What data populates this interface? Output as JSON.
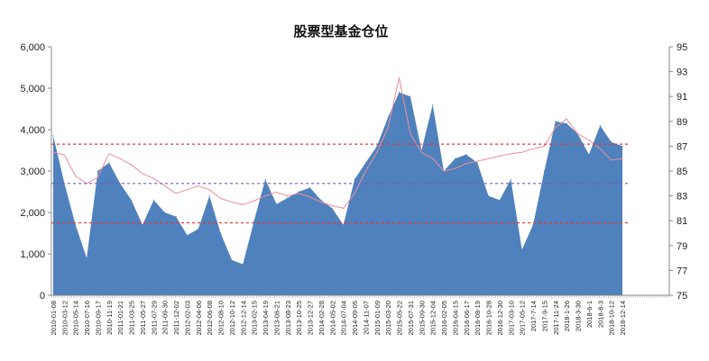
{
  "chart_data": {
    "type": "area",
    "title": "股票型基金仓位",
    "xlabel": "",
    "ylabel": "",
    "y2label": "",
    "ylim": [
      0,
      6000
    ],
    "y2lim": [
      75,
      95
    ],
    "yticks": [
      "0",
      "1,000",
      "2,000",
      "3,000",
      "4,000",
      "5,000",
      "6,000"
    ],
    "y2ticks": [
      "75",
      "77",
      "79",
      "81",
      "83",
      "85",
      "87",
      "89",
      "91",
      "93",
      "95"
    ],
    "grid": false,
    "legend": "none",
    "x": [
      "2010-01-08",
      "2010-03-12",
      "2010-05-14",
      "2010-07-16",
      "2010-09-17",
      "2010-11-19",
      "2011-01-21",
      "2011-03-25",
      "2011-05-27",
      "2011-07-29",
      "2011-09-30",
      "2011-12-02",
      "2012-02-03",
      "2012-04-06",
      "2012-06-08",
      "2012-08-10",
      "2012-10-12",
      "2012-12-14",
      "2013-02-15",
      "2013-04-19",
      "2013-06-21",
      "2013-08-23",
      "2013-10-25",
      "2013-12-27",
      "2014-02-28",
      "2014-05-02",
      "2014-07-04",
      "2014-09-05",
      "2014-11-07",
      "2015-01-09",
      "2015-03-20",
      "2015-05-22",
      "2015-07-31",
      "2015-09-30",
      "2015-12-04",
      "2016-02-05",
      "2016-04-15",
      "2016-06-17",
      "2016-08-19",
      "2016-10-28",
      "2016-12-30",
      "2017-03-10",
      "2017-05-12",
      "2017-7-14",
      "2017-9-15",
      "2017-11-24",
      "2018-1-26",
      "2018-3-30",
      "2018-6-1",
      "2018-8-3",
      "2018-10-12",
      "2018-12-14"
    ],
    "series": [
      {
        "type": "area",
        "axis": "left",
        "color": "#4f81bd",
        "values": [
          3850,
          2700,
          1700,
          900,
          3000,
          3200,
          2700,
          2300,
          1700,
          2300,
          2000,
          1900,
          1450,
          1600,
          2400,
          1500,
          850,
          750,
          1800,
          2800,
          2200,
          2350,
          2500,
          2600,
          2300,
          2100,
          1700,
          2800,
          3200,
          3600,
          4300,
          4900,
          4800,
          3500,
          4600,
          3000,
          3300,
          3400,
          3200,
          2400,
          2300,
          2800,
          1100,
          1700,
          3000,
          4200,
          4150,
          3900,
          3400,
          4100,
          3700,
          3600
        ]
      },
      {
        "type": "line",
        "axis": "right",
        "color": "#e8909c",
        "values": [
          86.5,
          86.3,
          84.6,
          84.0,
          84.5,
          86.4,
          86.0,
          85.5,
          84.8,
          84.4,
          83.8,
          83.2,
          83.5,
          83.8,
          83.5,
          82.8,
          82.5,
          82.3,
          82.6,
          83.0,
          83.3,
          83.0,
          83.2,
          82.9,
          82.5,
          82.2,
          82.0,
          83.2,
          85.0,
          86.5,
          88.5,
          92.5,
          88.0,
          86.5,
          86.0,
          85.0,
          85.2,
          85.6,
          85.8,
          86.0,
          86.2,
          86.4,
          86.5,
          86.8,
          87.0,
          88.5,
          89.2,
          88.0,
          87.5,
          86.8,
          85.9,
          86.0
        ]
      }
    ],
    "reference_lines": [
      {
        "axis": "left",
        "value": 3650,
        "color": "#e53935",
        "style": "dashed"
      },
      {
        "axis": "left",
        "value": 2700,
        "color": "#7e57c2",
        "style": "dashed"
      },
      {
        "axis": "left",
        "value": 1750,
        "color": "#e53935",
        "style": "dashed"
      }
    ]
  }
}
